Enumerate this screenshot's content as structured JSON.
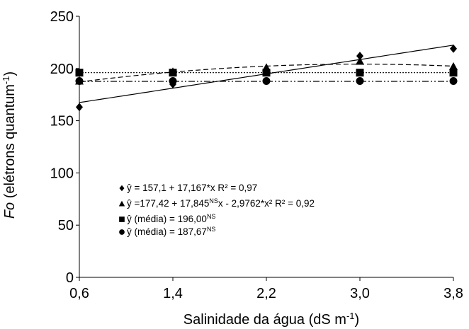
{
  "chart_data": {
    "type": "scatter",
    "x_axis": {
      "label_main": "Salinidade da água (dS m",
      "label_sup": "-1",
      "label_end": ")",
      "ticks": [
        0.6,
        1.4,
        2.2,
        3.0,
        3.8
      ],
      "tick_labels": [
        "0,6",
        "1,4",
        "2,2",
        "3,0",
        "3,8"
      ],
      "range": [
        0.6,
        3.8
      ]
    },
    "y_axis": {
      "label_italic": "Fo",
      "label_main": " (elétrons quantum",
      "label_sup": "-1",
      "label_end": ")",
      "ticks": [
        0,
        50,
        100,
        150,
        200,
        250
      ],
      "tick_labels": [
        "0",
        "50",
        "100",
        "150",
        "200",
        "250"
      ],
      "range": [
        0,
        250
      ]
    },
    "grid": false,
    "series": [
      {
        "marker": "diamond",
        "line": "solid",
        "x": [
          0.6,
          1.4,
          2.2,
          3.0,
          3.8
        ],
        "y": [
          163,
          185,
          199,
          212,
          219
        ],
        "fit": {
          "type": "linear",
          "a": 157.1,
          "b": 17.167
        },
        "legend": {
          "base": "ŷ = 157,1 + 17,167*x R² = 0,97",
          "parts": []
        }
      },
      {
        "marker": "triangle",
        "line": "dashed",
        "x": [
          0.6,
          1.4,
          2.2,
          3.0,
          3.8
        ],
        "y": [
          188,
          197,
          201,
          207,
          202
        ],
        "fit": {
          "type": "quadratic",
          "a": 177.42,
          "b": 17.845,
          "c": -2.9762
        },
        "legend": {
          "base": "ŷ =177,42 + 17,845",
          "sup": "NS",
          "rest": "x - 2,9762*x² R² = 0,92"
        }
      },
      {
        "marker": "square",
        "line": "dotted",
        "x": [
          0.6,
          1.4,
          2.2,
          3.0,
          3.8
        ],
        "y": [
          196,
          196,
          196,
          196,
          196
        ],
        "fit": {
          "type": "mean",
          "value": 196.0
        },
        "legend": {
          "base": "ŷ (média) = 196,00",
          "sup": "NS",
          "rest": ""
        }
      },
      {
        "marker": "circle",
        "line": "dashdotdot",
        "x": [
          0.6,
          1.4,
          2.2,
          3.0,
          3.8
        ],
        "y": [
          188,
          188,
          188,
          188,
          188
        ],
        "fit": {
          "type": "mean",
          "value": 187.67
        },
        "legend": {
          "base": "ŷ (média) = 187,67",
          "sup": "NS",
          "rest": ""
        }
      }
    ],
    "legend_position": "lower-left"
  }
}
